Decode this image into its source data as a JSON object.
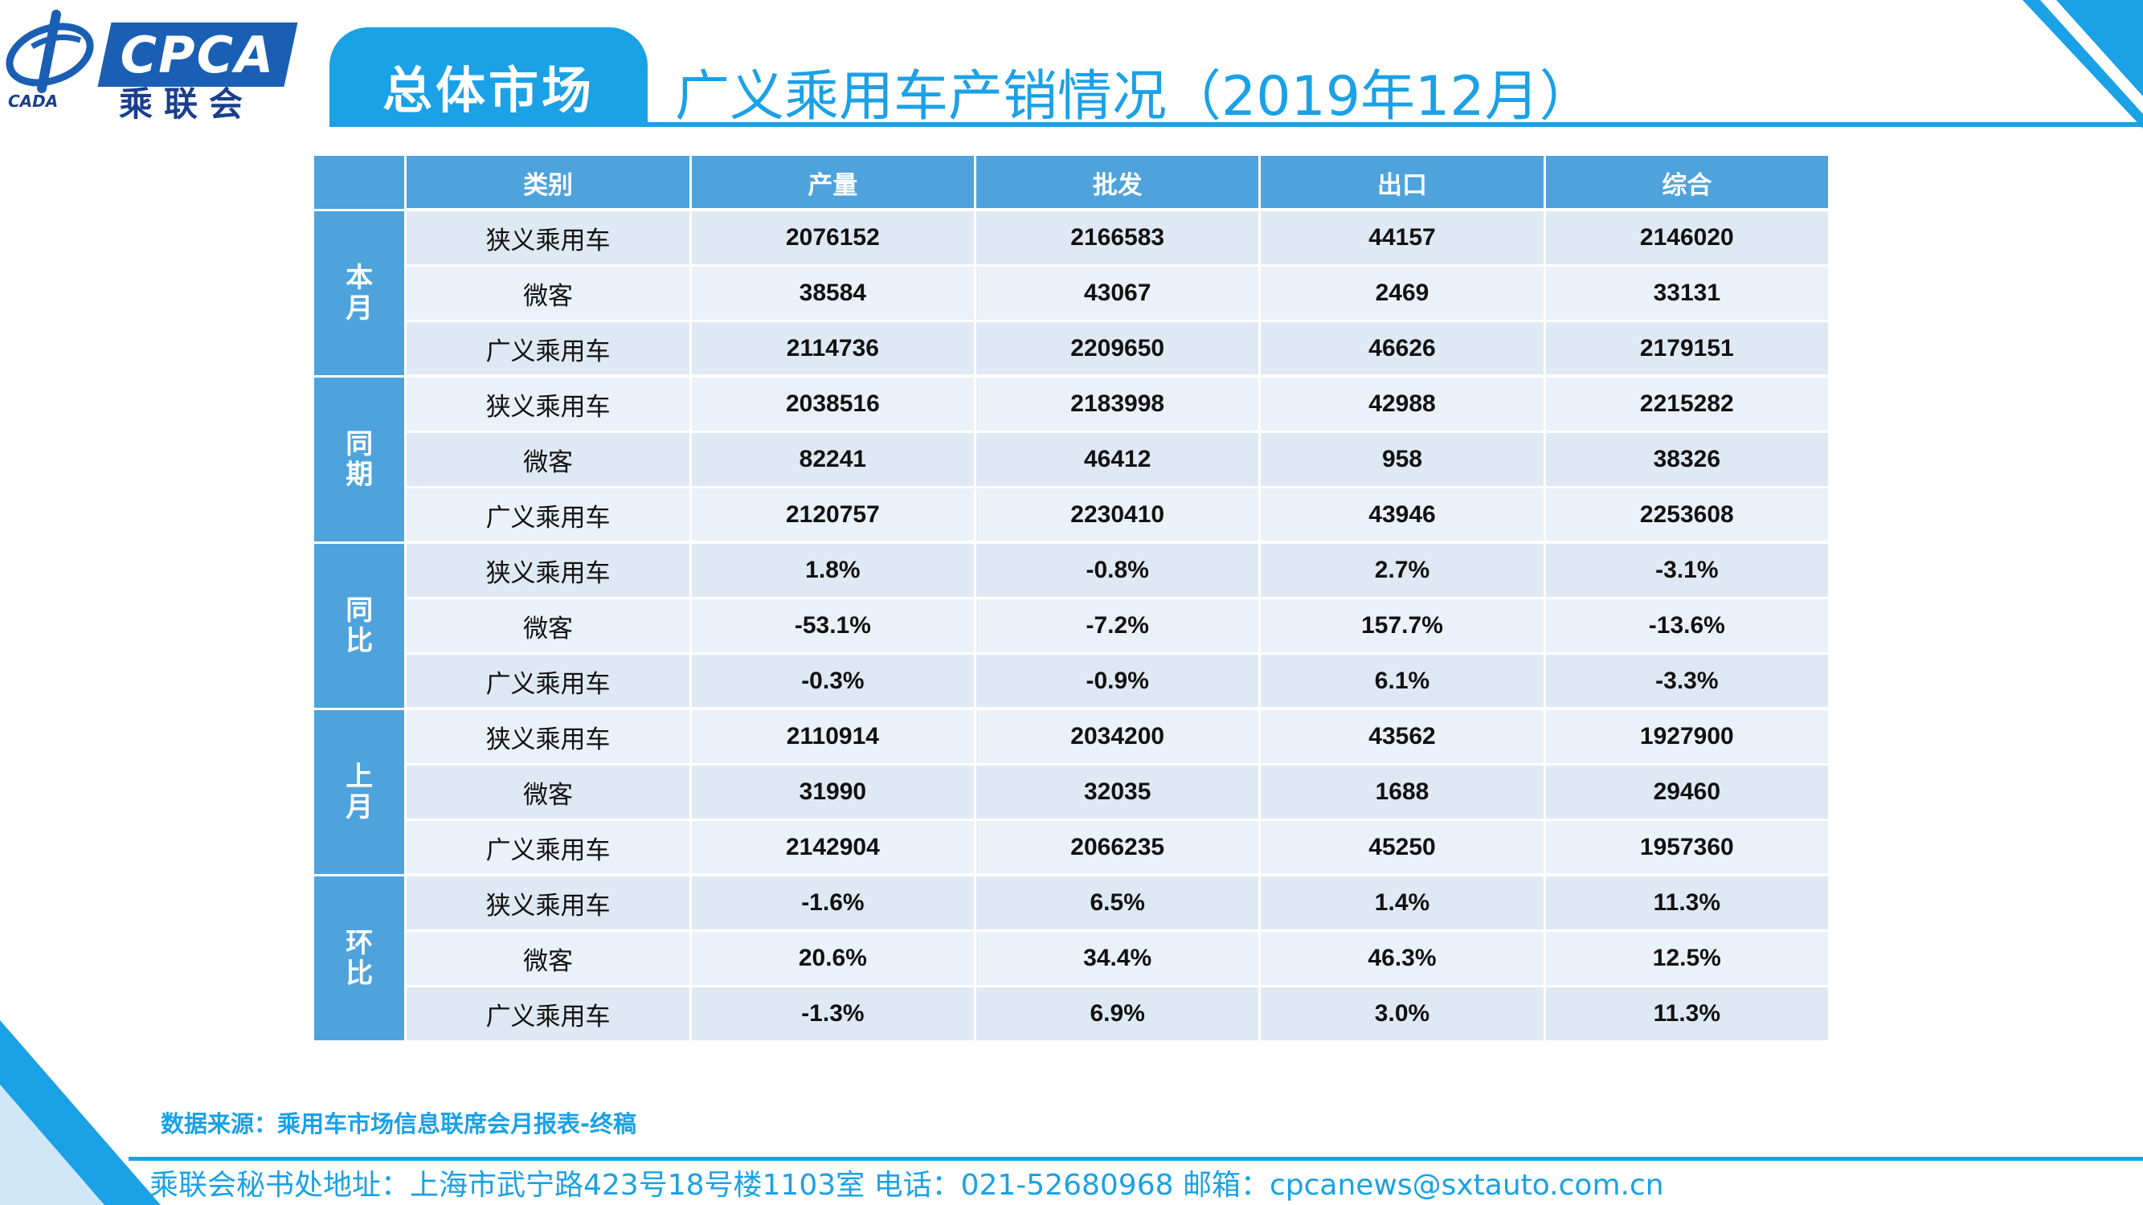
{
  "logo": {
    "brand": "CPCA",
    "name_cn": "乘联会",
    "sub": "CADA"
  },
  "header": {
    "section": "总体市场",
    "title": "广义乘用车产销情况（2019年12月）"
  },
  "table": {
    "headers": [
      "",
      "类别",
      "产量",
      "批发",
      "出口",
      "综合"
    ],
    "groups": [
      {
        "label": "本月",
        "rows": [
          [
            "狭义乘用车",
            "2076152",
            "2166583",
            "44157",
            "2146020"
          ],
          [
            "微客",
            "38584",
            "43067",
            "2469",
            "33131"
          ],
          [
            "广义乘用车",
            "2114736",
            "2209650",
            "46626",
            "2179151"
          ]
        ]
      },
      {
        "label": "同期",
        "rows": [
          [
            "狭义乘用车",
            "2038516",
            "2183998",
            "42988",
            "2215282"
          ],
          [
            "微客",
            "82241",
            "46412",
            "958",
            "38326"
          ],
          [
            "广义乘用车",
            "2120757",
            "2230410",
            "43946",
            "2253608"
          ]
        ]
      },
      {
        "label": "同比",
        "rows": [
          [
            "狭义乘用车",
            "1.8%",
            "-0.8%",
            "2.7%",
            "-3.1%"
          ],
          [
            "微客",
            "-53.1%",
            "-7.2%",
            "157.7%",
            "-13.6%"
          ],
          [
            "广义乘用车",
            "-0.3%",
            "-0.9%",
            "6.1%",
            "-3.3%"
          ]
        ]
      },
      {
        "label": "上月",
        "rows": [
          [
            "狭义乘用车",
            "2110914",
            "2034200",
            "43562",
            "1927900"
          ],
          [
            "微客",
            "31990",
            "32035",
            "1688",
            "29460"
          ],
          [
            "广义乘用车",
            "2142904",
            "2066235",
            "45250",
            "1957360"
          ]
        ]
      },
      {
        "label": "环比",
        "rows": [
          [
            "狭义乘用车",
            "-1.6%",
            "6.5%",
            "1.4%",
            "11.3%"
          ],
          [
            "微客",
            "20.6%",
            "34.4%",
            "46.3%",
            "12.5%"
          ],
          [
            "广义乘用车",
            "-1.3%",
            "6.9%",
            "3.0%",
            "11.3%"
          ]
        ]
      }
    ]
  },
  "footer": {
    "source": "数据来源：乘用车市场信息联席会月报表-终稿",
    "address": "乘联会秘书处地址：上海市武宁路423号18号楼1103室  电话：021-52680968   邮箱：cpcanews@sxtauto.com.cn"
  },
  "colors": {
    "accent": "#1aa1e6",
    "header_cell": "#4ea3dc",
    "row_light": "#eaf1f8",
    "row_dark": "#dfe9f3",
    "logo_blue": "#1a5fb4"
  }
}
